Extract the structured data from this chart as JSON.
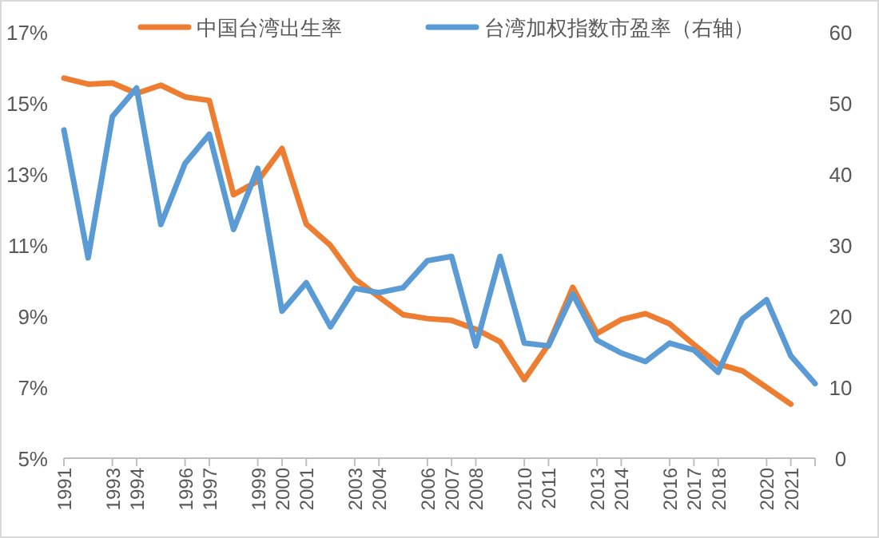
{
  "chart_data": {
    "type": "line",
    "legend": "top",
    "grid": false,
    "xlim": [
      1991,
      2022
    ],
    "ylim": [
      5,
      17
    ],
    "y2lim": [
      0,
      60
    ],
    "yticks": [
      {
        "value": 5,
        "label": "5%"
      },
      {
        "value": 7,
        "label": "7%"
      },
      {
        "value": 9,
        "label": "9%"
      },
      {
        "value": 11,
        "label": "11%"
      },
      {
        "value": 13,
        "label": "13%"
      },
      {
        "value": 15,
        "label": "15%"
      },
      {
        "value": 17,
        "label": "17%"
      }
    ],
    "y2ticks": [
      0,
      10,
      20,
      30,
      40,
      50,
      60
    ],
    "xticks": [
      1991,
      1993,
      1994,
      1996,
      1997,
      1999,
      2000,
      2001,
      2003,
      2004,
      2006,
      2007,
      2008,
      2010,
      2011,
      2013,
      2014,
      2016,
      2017,
      2018,
      2020,
      2021,
      {
        "value": 2022,
        "label": null
      }
    ],
    "series": [
      {
        "name": "中国台湾出生率",
        "color": "#ed7d31",
        "x": [
          1991,
          1992,
          1993,
          1994,
          1995,
          1996,
          1997,
          1998,
          1999,
          2000,
          2001,
          2002,
          2003,
          2004,
          2005,
          2006,
          2007,
          2008,
          2009,
          2010,
          2011,
          2012,
          2013,
          2014,
          2015,
          2016,
          2017,
          2018,
          2019,
          2020,
          2021
        ],
        "values": [
          15.7,
          15.53,
          15.56,
          15.27,
          15.5,
          15.17,
          15.07,
          12.42,
          12.8,
          13.72,
          11.59,
          10.99,
          10.05,
          9.54,
          9.04,
          8.93,
          8.88,
          8.63,
          8.28,
          7.21,
          8.2,
          9.81,
          8.51,
          8.9,
          9.07,
          8.78,
          8.2,
          7.65,
          7.46,
          6.99,
          6.52
        ]
      },
      {
        "name": "台湾加权指数市盈率（右轴）",
        "color": "#5b9bd5",
        "axis": "y2",
        "x": [
          1991,
          1992,
          1993,
          1994,
          1995,
          1996,
          1997,
          1998,
          1999,
          2000,
          2001,
          2002,
          2003,
          2004,
          2005,
          2006,
          2007,
          2008,
          2009,
          2010,
          2011,
          2012,
          2013,
          2014,
          2015,
          2016,
          2017,
          2018,
          2019,
          2020,
          2021,
          2022
        ],
        "values": [
          46.2,
          28.2,
          48.1,
          52.1,
          32.9,
          41.5,
          45.6,
          32.2,
          40.8,
          20.7,
          24.7,
          18.5,
          23.9,
          23.3,
          24.0,
          27.8,
          28.4,
          15.8,
          28.4,
          16.2,
          15.8,
          23.1,
          16.6,
          14.8,
          13.6,
          16.2,
          15.2,
          12.1,
          19.6,
          22.3,
          14.4,
          10.5
        ]
      }
    ]
  }
}
